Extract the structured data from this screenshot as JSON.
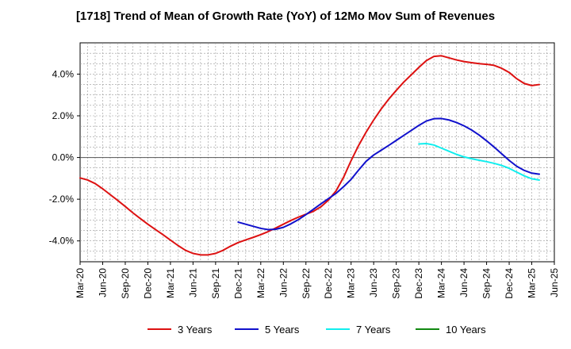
{
  "chart_data": {
    "type": "line",
    "title": "[1718]  Trend of Mean of Growth Rate (YoY) of 12Mo Mov Sum of Revenues",
    "xlabel": "",
    "ylabel": "",
    "ylim": [
      -5.0,
      5.5
    ],
    "yticks": [
      -4.0,
      -2.0,
      0.0,
      2.0,
      4.0
    ],
    "ytick_labels": [
      "-4.0%",
      "-2.0%",
      "0.0%",
      "2.0%",
      "4.0%"
    ],
    "x_start": "Mar-20",
    "x_months_total": 63,
    "xtick_labels": [
      "Mar-20",
      "Jun-20",
      "Sep-20",
      "Dec-20",
      "Mar-21",
      "Jun-21",
      "Sep-21",
      "Dec-21",
      "Mar-22",
      "Jun-22",
      "Sep-22",
      "Dec-22",
      "Mar-23",
      "Jun-23",
      "Sep-23",
      "Dec-23",
      "Mar-24",
      "Jun-24",
      "Sep-24",
      "Dec-24",
      "Mar-25",
      "Jun-25"
    ],
    "grid": true,
    "legend_position": "bottom",
    "series": [
      {
        "name": "3 Years",
        "color": "#dd1111",
        "start_month_index": 0,
        "values": [
          -0.98,
          -1.08,
          -1.25,
          -1.5,
          -1.78,
          -2.06,
          -2.35,
          -2.65,
          -2.93,
          -3.2,
          -3.45,
          -3.7,
          -3.96,
          -4.22,
          -4.45,
          -4.6,
          -4.67,
          -4.67,
          -4.6,
          -4.45,
          -4.25,
          -4.08,
          -3.95,
          -3.83,
          -3.7,
          -3.55,
          -3.38,
          -3.2,
          -3.02,
          -2.86,
          -2.72,
          -2.58,
          -2.36,
          -2.04,
          -1.6,
          -0.95,
          -0.15,
          0.58,
          1.22,
          1.8,
          2.33,
          2.8,
          3.22,
          3.62,
          3.97,
          4.32,
          4.65,
          4.85,
          4.88,
          4.78,
          4.68,
          4.6,
          4.55,
          4.5,
          4.47,
          4.42,
          4.28,
          4.08,
          3.78,
          3.55,
          3.45,
          3.5
        ]
      },
      {
        "name": "5 Years",
        "color": "#1111cc",
        "start_month_index": 21,
        "values": [
          -3.1,
          -3.2,
          -3.3,
          -3.4,
          -3.46,
          -3.44,
          -3.35,
          -3.18,
          -2.98,
          -2.74,
          -2.48,
          -2.22,
          -1.97,
          -1.72,
          -1.4,
          -1.05,
          -0.6,
          -0.18,
          0.12,
          0.35,
          0.58,
          0.82,
          1.06,
          1.3,
          1.54,
          1.75,
          1.86,
          1.87,
          1.8,
          1.68,
          1.52,
          1.32,
          1.08,
          0.8,
          0.5,
          0.18,
          -0.14,
          -0.42,
          -0.62,
          -0.75,
          -0.8
        ]
      },
      {
        "name": "7 Years",
        "color": "#11eeee",
        "start_month_index": 45,
        "values": [
          0.65,
          0.67,
          0.6,
          0.45,
          0.3,
          0.15,
          0.03,
          -0.06,
          -0.13,
          -0.2,
          -0.28,
          -0.38,
          -0.52,
          -0.7,
          -0.88,
          -1.02,
          -1.08
        ]
      },
      {
        "name": "10 Years",
        "color": "#118811",
        "start_month_index": 0,
        "values": []
      }
    ]
  }
}
